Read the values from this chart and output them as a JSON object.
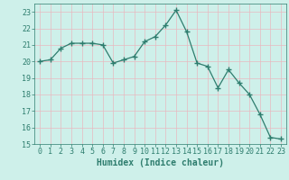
{
  "x": [
    0,
    1,
    2,
    3,
    4,
    5,
    6,
    7,
    8,
    9,
    10,
    11,
    12,
    13,
    14,
    15,
    16,
    17,
    18,
    19,
    20,
    21,
    22,
    23
  ],
  "y": [
    20.0,
    20.1,
    20.8,
    21.1,
    21.1,
    21.1,
    21.0,
    19.9,
    20.1,
    20.3,
    21.2,
    21.5,
    22.2,
    23.1,
    21.8,
    19.9,
    19.7,
    18.4,
    19.5,
    18.7,
    18.0,
    16.8,
    15.4,
    15.3
  ],
  "line_color": "#2e7d6e",
  "marker": "+",
  "marker_size": 4,
  "bg_color": "#cef0ea",
  "grid_color": "#e8b8c0",
  "xlabel": "Humidex (Indice chaleur)",
  "ylim": [
    15,
    23.5
  ],
  "xlim": [
    -0.5,
    23.5
  ],
  "yticks": [
    15,
    16,
    17,
    18,
    19,
    20,
    21,
    22,
    23
  ],
  "xticks": [
    0,
    1,
    2,
    3,
    4,
    5,
    6,
    7,
    8,
    9,
    10,
    11,
    12,
    13,
    14,
    15,
    16,
    17,
    18,
    19,
    20,
    21,
    22,
    23
  ],
  "xlabel_color": "#2e7d6e",
  "tick_color": "#2e7d6e",
  "xlabel_fontsize": 7,
  "tick_fontsize": 6,
  "spine_color": "#2e7d6e"
}
